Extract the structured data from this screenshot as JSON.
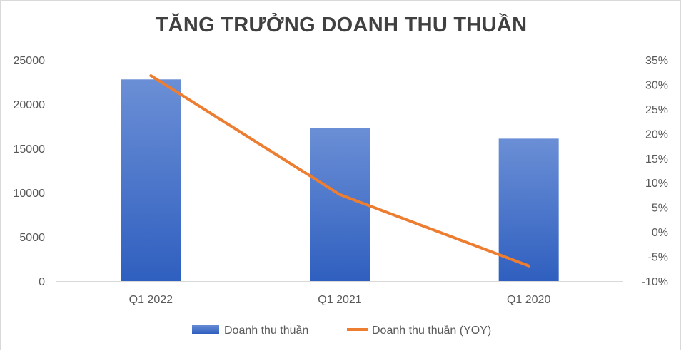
{
  "chart_data": {
    "type": "bar",
    "title": "TĂNG TRƯỞNG DOANH THU THUẦN",
    "categories": [
      "Q1 2022",
      "Q1 2021",
      "Q1 2020"
    ],
    "series": [
      {
        "name": "Doanh thu thuần",
        "type": "bar",
        "axis": "left",
        "color": "#4472c4",
        "values": [
          22800,
          17300,
          16100
        ]
      },
      {
        "name": "Doanh thu thuần (YOY)",
        "type": "line",
        "axis": "right",
        "color": "#ed7d31",
        "values": [
          31.8,
          7.6,
          -6.9
        ]
      }
    ],
    "y_left": {
      "min": 0,
      "max": 25000,
      "ticks": [
        0,
        5000,
        10000,
        15000,
        20000,
        25000
      ],
      "tick_labels": [
        "0",
        "5000",
        "10000",
        "15000",
        "20000",
        "25000"
      ]
    },
    "y_right": {
      "min": -10,
      "max": 35,
      "ticks": [
        -10,
        -5,
        0,
        5,
        10,
        15,
        20,
        25,
        30,
        35
      ],
      "tick_labels": [
        "-10%",
        "-5%",
        "0%",
        "5%",
        "10%",
        "15%",
        "20%",
        "25%",
        "30%",
        "35%"
      ]
    },
    "grid": false,
    "legend_position": "bottom"
  }
}
